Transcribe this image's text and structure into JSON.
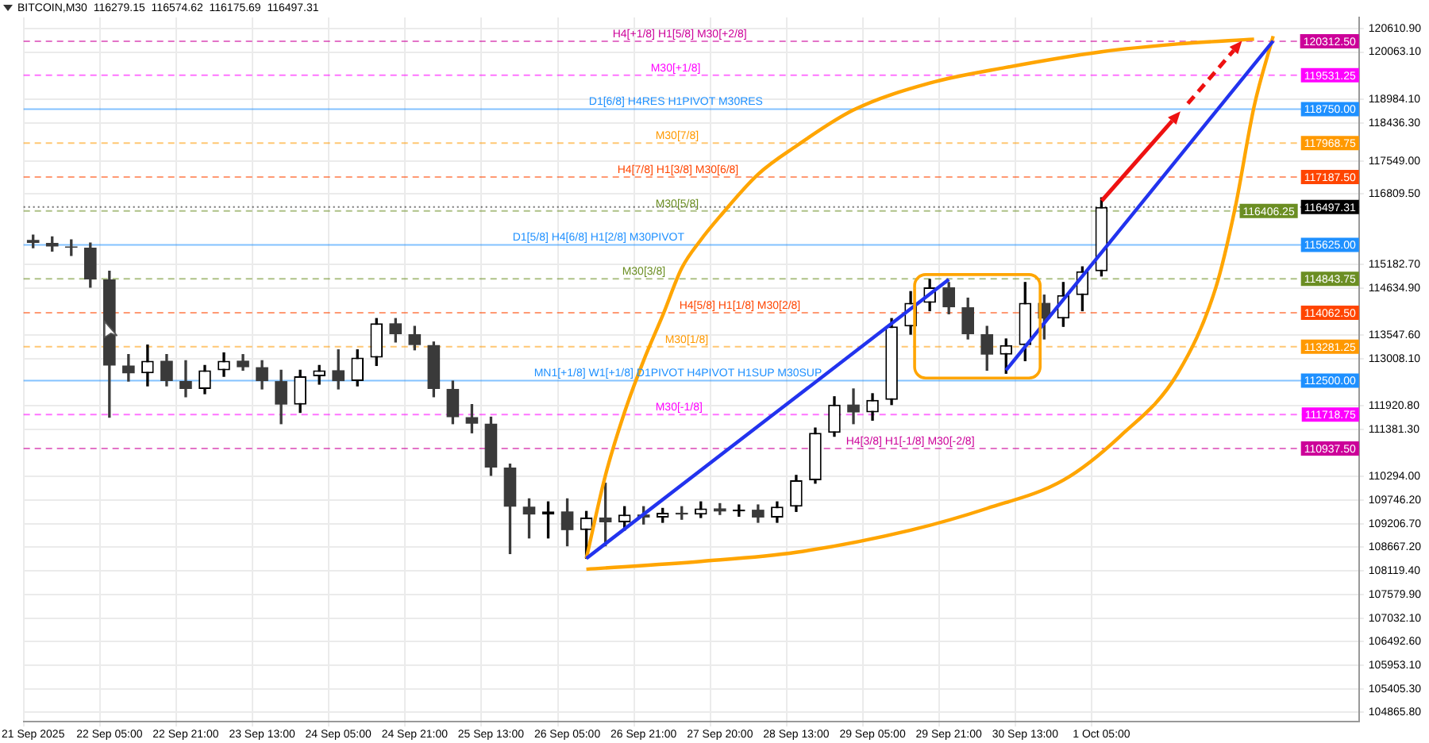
{
  "chart_data": {
    "type": "candlestick",
    "title": "BITCOIN,M30  116279.15  116574.62  116175.69  116497.31",
    "colors": [
      "#3a3a3a",
      "#3a3a3a",
      "#3a3a3a",
      "#3a3a3a",
      "#3a3a3a",
      "#3a3a3a",
      "#000000",
      "#3a3a3a",
      "#3a3a3a",
      "#000000",
      "#000000",
      "#3a3a3a",
      "#3a3a3a",
      "#3a3a3a",
      "#000000",
      "#000000",
      "#3a3a3a",
      "#000000",
      "#000000",
      "#3a3a3a",
      "#3a3a3a",
      "#3a3a3a",
      "#3a3a3a",
      "#3a3a3a",
      "#3a3a3a",
      "#3a3a3a",
      "#3a3a3a",
      "#000000",
      "#3a3a3a",
      "#000000",
      "#3a3a3a",
      "#000000",
      "#3a3a3a",
      "#000000",
      "#3a3a3a",
      "#000000",
      "#3a3a3a",
      "#000000",
      "#3a3a3a",
      "#000000",
      "#000000",
      "#000000",
      "#000000",
      "#3a3a3a",
      "#000000",
      "#000000",
      "#000000",
      "#000000",
      "#3a3a3a",
      "#3a3a3a",
      "#3a3a3a",
      "#000000",
      "#000000",
      "#3a3a3a",
      "#000000",
      "#000000",
      "#000000",
      null,
      null,
      null,
      null,
      null,
      null,
      null,
      null,
      null,
      null,
      null,
      null,
      null
    ],
    "grid": true,
    "categories": [
      "21 Sep 2025",
      null,
      null,
      null,
      "22 Sep 05:00",
      null,
      null,
      null,
      "22 Sep 21:00",
      null,
      null,
      null,
      "23 Sep 13:00",
      null,
      null,
      null,
      "24 Sep 05:00",
      null,
      null,
      null,
      "24 Sep 21:00",
      null,
      null,
      null,
      "25 Sep 13:00",
      null,
      null,
      null,
      "26 Sep 05:00",
      null,
      null,
      null,
      "26 Sep 21:00",
      null,
      null,
      null,
      "27 Sep 20:00",
      null,
      null,
      null,
      "28 Sep 13:00",
      null,
      null,
      null,
      "29 Sep 05:00",
      null,
      null,
      null,
      "29 Sep 21:00",
      null,
      null,
      null,
      "30 Sep 13:00",
      null,
      null,
      null,
      "1 Oct 05:00",
      null,
      null,
      null,
      null,
      null,
      null,
      null,
      null,
      null,
      null,
      null,
      null,
      null
    ],
    "ohlc": [
      [
        115740,
        115850,
        115560,
        115670
      ],
      [
        115670,
        115810,
        115480,
        115590
      ],
      [
        115590,
        115740,
        115380,
        115560
      ],
      [
        115560,
        115670,
        114650,
        114830
      ],
      [
        114830,
        115020,
        111660,
        112850
      ],
      [
        112850,
        113100,
        112490,
        112670
      ],
      [
        112670,
        113320,
        112380,
        112960
      ],
      [
        112960,
        113100,
        112380,
        112490
      ],
      [
        112490,
        112960,
        112130,
        112310
      ],
      [
        112310,
        112850,
        112200,
        112740
      ],
      [
        112740,
        113140,
        112600,
        112960
      ],
      [
        112960,
        113100,
        112740,
        112810
      ],
      [
        112810,
        112960,
        112310,
        112490
      ],
      [
        112490,
        112740,
        111510,
        111950
      ],
      [
        111950,
        112740,
        111770,
        112600
      ],
      [
        112600,
        112850,
        112420,
        112740
      ],
      [
        112740,
        113210,
        112310,
        112490
      ],
      [
        112490,
        113210,
        112380,
        113030
      ],
      [
        113030,
        113930,
        112850,
        113820
      ],
      [
        113820,
        113930,
        113390,
        113570
      ],
      [
        113570,
        113750,
        113210,
        113320
      ],
      [
        113320,
        113390,
        112130,
        112310
      ],
      [
        112310,
        112490,
        111510,
        111660
      ],
      [
        111660,
        111950,
        111300,
        111510
      ],
      [
        111510,
        111660,
        110320,
        110500
      ],
      [
        110500,
        110580,
        108520,
        109600
      ],
      [
        109600,
        109780,
        108880,
        109420
      ],
      [
        109420,
        109710,
        108880,
        109490
      ],
      [
        109490,
        109780,
        108700,
        109060
      ],
      [
        109060,
        109490,
        108410,
        109350
      ],
      [
        109350,
        110140,
        108700,
        109240
      ],
      [
        109240,
        109600,
        109060,
        109420
      ],
      [
        109420,
        109600,
        109200,
        109350
      ],
      [
        109350,
        109560,
        109240,
        109460
      ],
      [
        109460,
        109600,
        109310,
        109420
      ],
      [
        109420,
        109710,
        109350,
        109560
      ],
      [
        109560,
        109670,
        109420,
        109490
      ],
      [
        109490,
        109640,
        109380,
        109530
      ],
      [
        109530,
        109640,
        109240,
        109350
      ],
      [
        109350,
        109710,
        109240,
        109600
      ],
      [
        109600,
        110320,
        109490,
        110210
      ],
      [
        110210,
        111410,
        110140,
        111300
      ],
      [
        111300,
        112130,
        111220,
        111950
      ],
      [
        111950,
        112310,
        111510,
        111770
      ],
      [
        111770,
        112200,
        111590,
        112060
      ],
      [
        112060,
        113930,
        111950,
        113750
      ],
      [
        113750,
        114550,
        113570,
        114290
      ],
      [
        114290,
        114830,
        114110,
        114650
      ],
      [
        114650,
        114760,
        114040,
        114190
      ],
      [
        114190,
        114400,
        113460,
        113570
      ],
      [
        113570,
        113750,
        112740,
        113100
      ],
      [
        113100,
        113460,
        112670,
        113320
      ],
      [
        113320,
        114760,
        112960,
        114290
      ],
      [
        114290,
        114470,
        113460,
        113930
      ],
      [
        113930,
        114760,
        113750,
        114470
      ],
      [
        114470,
        115120,
        114110,
        115020
      ],
      [
        115020,
        116710,
        114910,
        116497.31
      ],
      null,
      null,
      null,
      null,
      null,
      null,
      null,
      null,
      null,
      null,
      null,
      null,
      null
    ],
    "series": [
      {
        "type": "line",
        "color": "#2233ee",
        "values": [
          null,
          null,
          null,
          null,
          null,
          null,
          null,
          null,
          null,
          null,
          null,
          null,
          null,
          null,
          null,
          null,
          null,
          null,
          null,
          null,
          null,
          null,
          null,
          null,
          null,
          null,
          null,
          null,
          null,
          108410,
          null,
          null,
          null,
          null,
          null,
          null,
          null,
          null,
          null,
          null,
          null,
          null,
          null,
          null,
          null,
          null,
          null,
          null,
          114830,
          null,
          null,
          null,
          null,
          null,
          null,
          null,
          null,
          null,
          null,
          null,
          null,
          null,
          null,
          null,
          null,
          null,
          null,
          null,
          null,
          null
        ]
      },
      {
        "type": "line",
        "color": "#2233ee",
        "values": [
          null,
          null,
          null,
          null,
          null,
          null,
          null,
          null,
          null,
          null,
          null,
          null,
          null,
          null,
          null,
          null,
          null,
          null,
          null,
          null,
          null,
          null,
          null,
          null,
          null,
          null,
          null,
          null,
          null,
          null,
          null,
          null,
          null,
          null,
          null,
          null,
          null,
          null,
          null,
          null,
          null,
          null,
          null,
          null,
          null,
          null,
          null,
          null,
          null,
          null,
          null,
          112740,
          null,
          null,
          null,
          null,
          null,
          null,
          null,
          null,
          null,
          null,
          null,
          null,
          null,
          120320,
          null,
          null,
          null,
          null
        ]
      },
      {
        "type": "line",
        "color": "#ffa500",
        "values": [
          null,
          null,
          null,
          null,
          null,
          null,
          null,
          null,
          null,
          null,
          null,
          null,
          null,
          null,
          null,
          null,
          null,
          null,
          null,
          null,
          null,
          null,
          null,
          null,
          null,
          null,
          null,
          null,
          null,
          108410,
          110320,
          111770,
          112960,
          114000,
          115090,
          115740,
          116280,
          null,
          117250,
          null,
          117900,
          null,
          null,
          118730,
          null,
          null,
          null,
          119350,
          null,
          null,
          null,
          119710,
          null,
          null,
          null,
          null,
          120070,
          null,
          null,
          null,
          120250,
          null,
          null,
          null,
          120360,
          null,
          null,
          null,
          null,
          null
        ]
      },
      {
        "type": "line",
        "color": "#ffa500",
        "values": [
          null,
          null,
          null,
          null,
          null,
          null,
          null,
          null,
          null,
          null,
          null,
          null,
          null,
          null,
          null,
          null,
          null,
          null,
          null,
          null,
          null,
          null,
          null,
          null,
          null,
          null,
          null,
          null,
          null,
          108160,
          null,
          null,
          null,
          null,
          null,
          108340,
          null,
          null,
          null,
          null,
          108550,
          null,
          null,
          null,
          null,
          null,
          109060,
          null,
          null,
          null,
          109560,
          null,
          null,
          null,
          110210,
          null,
          null,
          111230,
          null,
          null,
          112670,
          null,
          114650,
          116460,
          118810,
          120430,
          null,
          null,
          null,
          null
        ]
      }
    ],
    "annotations": [
      {
        "text": "120312.50",
        "y": 120312.5
      },
      {
        "text": "119531.25",
        "y": 119531.25
      },
      {
        "text": "118750.00",
        "y": 118750
      },
      {
        "text": "117968.75",
        "y": 117968.75
      },
      {
        "text": "117187.50",
        "y": 117187.5
      },
      {
        "text": "116497.31",
        "y": 116497.31
      },
      {
        "text": "116406.25",
        "y": 116406.25
      },
      {
        "text": "115625.00",
        "y": 115625
      },
      {
        "text": "114843.75",
        "y": 114843.75
      },
      {
        "text": "114062.50",
        "y": 114062.5
      },
      {
        "text": "113281.25",
        "y": 113281.25
      },
      {
        "text": "112500.00",
        "y": 112500
      },
      {
        "text": "111718.75",
        "y": 111718.75
      },
      {
        "text": "110937.50",
        "y": 110937.5
      }
    ],
    "ylim": [
      104650,
      120860
    ],
    "yticks": [
      {
        "value": 120610.9,
        "label": "120610.90"
      },
      {
        "value": 120063.1,
        "label": "120063.10"
      },
      {
        "value": 118984.1,
        "label": "118984.10"
      },
      {
        "value": 118436.3,
        "label": "118436.30"
      },
      {
        "value": 117549,
        "label": "117549.00"
      },
      {
        "value": 116809.5,
        "label": "116809.50"
      },
      {
        "value": 115182.7,
        "label": "115182.70"
      },
      {
        "value": 114634.9,
        "label": "114634.90"
      },
      {
        "value": 113547.6,
        "label": "113547.60"
      },
      {
        "value": 113008.1,
        "label": "113008.10"
      },
      {
        "value": 111920.8,
        "label": "111920.80"
      },
      {
        "value": 111381.3,
        "label": "111381.30"
      },
      {
        "value": 110294,
        "label": "110294.00"
      },
      {
        "value": 109746.2,
        "label": "109746.20"
      },
      {
        "value": 109206.7,
        "label": "109206.70"
      },
      {
        "value": 108667.2,
        "label": "108667.20"
      },
      {
        "value": 108119.4,
        "label": "108119.40"
      },
      {
        "value": 107579.9,
        "label": "107579.90"
      },
      {
        "value": 107032.1,
        "label": "107032.10"
      },
      {
        "value": 106492.6,
        "label": "106492.60"
      },
      {
        "value": 105953.1,
        "label": "105953.10"
      },
      {
        "value": 105405.3,
        "label": "105405.30"
      },
      {
        "value": 104865.8,
        "label": "104865.80"
      }
    ],
    "ref_lines": [
      {
        "axis": "y",
        "value": 120312.5,
        "label": "H4[+1/8] H1[5/8] M30[+2/8]",
        "color": "#cc0099",
        "line_style": "dashed"
      },
      {
        "axis": "y",
        "value": 119531.25,
        "label": "M30[+1/8]",
        "color": "#ff00ff",
        "line_style": "dashed"
      },
      {
        "axis": "y",
        "value": 118750,
        "label": "D1[6/8] H4RES H1PIVOT M30RES",
        "color": "#1e90ff",
        "line_style": "solid"
      },
      {
        "axis": "y",
        "value": 117968.75,
        "label": "M30[7/8]",
        "color": "#ff9900",
        "line_style": "dashed"
      },
      {
        "axis": "y",
        "value": 117187.5,
        "label": "H4[7/8] H1[3/8] M30[6/8]",
        "color": "#ff4500",
        "line_style": "dashed"
      },
      {
        "axis": "y",
        "value": 116497.31,
        "color": "#000000",
        "line_style": "dotted"
      },
      {
        "axis": "y",
        "value": 116406.25,
        "label": "M30[5/8]",
        "color": "#6b8e23",
        "line_style": "dashed"
      },
      {
        "axis": "y",
        "value": 115625,
        "label": "D1[5/8] H4[6/8] H1[2/8] M30PIVOT",
        "color": "#1e90ff",
        "line_style": "solid"
      },
      {
        "axis": "y",
        "value": 114843.75,
        "label": "M30[3/8]",
        "color": "#6b8e23",
        "line_style": "dashed"
      },
      {
        "axis": "y",
        "value": 114062.5,
        "label": "H4[5/8] H1[1/8] M30[2/8]",
        "color": "#ff4500",
        "line_style": "dashed"
      },
      {
        "axis": "y",
        "value": 113281.25,
        "label": "M30[1/8]",
        "color": "#ff9900",
        "line_style": "dashed"
      },
      {
        "axis": "y",
        "value": 112500,
        "label": "MN1[+1/8] W1[+1/8] D1PIVOT H4PIVOT H1SUP M30SUP",
        "color": "#1e90ff",
        "line_style": "solid"
      },
      {
        "axis": "y",
        "value": 111718.75,
        "label": "M30[-1/8]",
        "color": "#ff00ff",
        "line_style": "dashed"
      },
      {
        "axis": "y",
        "value": 110937.5,
        "label": "H4[3/8] H1[-1/8] M30[-2/8]",
        "color": "#cc0099",
        "line_style": "dashed"
      }
    ]
  }
}
